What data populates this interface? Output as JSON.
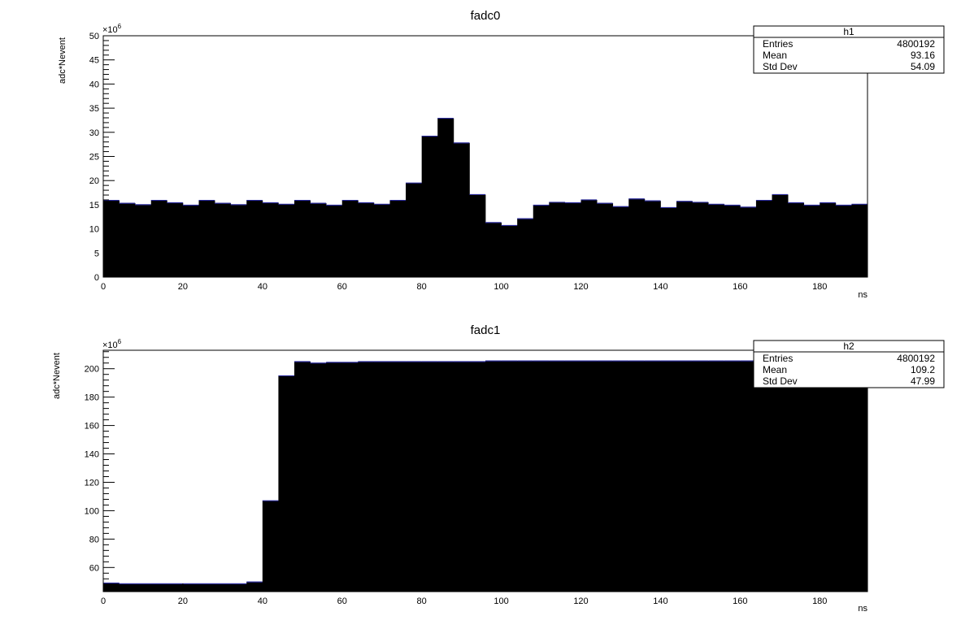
{
  "chart_data": [
    {
      "type": "bar",
      "title": "fadc0",
      "xlabel": "ns",
      "ylabel": "adc*Nevent",
      "y_exponent": "×10",
      "y_exponent_power": "6",
      "xlim": [
        0,
        192
      ],
      "ylim": [
        0,
        50
      ],
      "bin_width": 4,
      "x_ticks": [
        0,
        20,
        40,
        60,
        80,
        100,
        120,
        140,
        160,
        180
      ],
      "y_ticks": [
        0,
        5,
        10,
        15,
        20,
        25,
        30,
        35,
        40,
        45,
        50
      ],
      "values": [
        15.9,
        15.3,
        15.0,
        15.9,
        15.4,
        14.9,
        15.9,
        15.3,
        15.0,
        15.9,
        15.4,
        15.1,
        15.9,
        15.3,
        14.9,
        15.9,
        15.4,
        15.1,
        15.9,
        19.5,
        29.2,
        32.9,
        27.8,
        17.1,
        11.3,
        10.7,
        12.1,
        14.9,
        15.5,
        15.4,
        16.0,
        15.3,
        14.6,
        16.2,
        15.8,
        14.4,
        15.7,
        15.5,
        15.1,
        14.9,
        14.5,
        15.9,
        17.1,
        15.4,
        14.9,
        15.4,
        14.9,
        15.1
      ],
      "fill_color": "#000000",
      "edge_color": "#2a2a9a",
      "stats": {
        "name": "h1",
        "rows": [
          {
            "label": "Entries",
            "value": "4800192"
          },
          {
            "label": "Mean",
            "value": "93.16"
          },
          {
            "label": "Std Dev",
            "value": "54.09"
          }
        ]
      }
    },
    {
      "type": "bar",
      "title": "fadc1",
      "xlabel": "ns",
      "ylabel": "adc*Nevent",
      "y_exponent": "×10",
      "y_exponent_power": "6",
      "xlim": [
        0,
        192
      ],
      "ylim": [
        43,
        213
      ],
      "bin_width": 4,
      "x_ticks": [
        0,
        20,
        40,
        60,
        80,
        100,
        120,
        140,
        160,
        180
      ],
      "y_ticks": [
        60,
        80,
        100,
        120,
        140,
        160,
        180,
        200
      ],
      "values": [
        49.0,
        48.5,
        48.5,
        48.5,
        48.5,
        48.5,
        48.5,
        48.5,
        48.5,
        49.8,
        107.0,
        195.0,
        205.0,
        204.0,
        204.5,
        204.5,
        205.0,
        205.0,
        205.0,
        205.0,
        205.0,
        205.0,
        205.0,
        205.0,
        205.5,
        205.5,
        205.5,
        205.5,
        205.5,
        205.5,
        205.5,
        205.5,
        205.5,
        205.5,
        205.5,
        205.5,
        205.5,
        205.5,
        205.5,
        205.5,
        205.5,
        205.5,
        205.5,
        205.5,
        205.5,
        205.5,
        205.5,
        205.5
      ],
      "fill_color": "#000000",
      "edge_color": "#2a2a9a",
      "stats": {
        "name": "h2",
        "rows": [
          {
            "label": "Entries",
            "value": "4800192"
          },
          {
            "label": "Mean",
            "value": "109.2"
          },
          {
            "label": "Std Dev",
            "value": "47.99"
          }
        ]
      }
    }
  ]
}
